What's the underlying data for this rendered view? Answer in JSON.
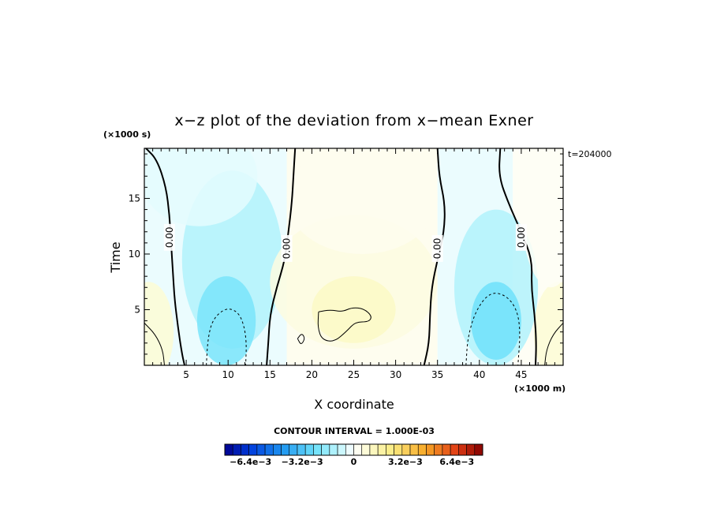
{
  "chart_data": {
    "type": "heatmap",
    "title": "x−z plot of the deviation from x−mean Exner",
    "xlabel": "X coordinate",
    "ylabel": "Time",
    "x_unit": "(×1000 m)",
    "y_unit": "(×1000 s)",
    "annotation": "t=204000",
    "xlim": [
      0,
      50
    ],
    "ylim": [
      0,
      19.5
    ],
    "x_ticks": [
      5,
      10,
      15,
      20,
      25,
      30,
      35,
      40,
      45
    ],
    "y_ticks": [
      5,
      10,
      15
    ],
    "contour_interval_text": "CONTOUR INTERVAL = 1.000E-03",
    "contour_interval": 0.001,
    "colorbar": {
      "range": [
        -0.008,
        0.008
      ],
      "ticks": [
        {
          "value": -0.0064,
          "label": "−6.4e−3"
        },
        {
          "value": -0.0032,
          "label": "−3.2e−3"
        },
        {
          "value": 0,
          "label": "0"
        },
        {
          "value": 0.0032,
          "label": "3.2e−3"
        },
        {
          "value": 0.0064,
          "label": "6.4e−3"
        }
      ]
    },
    "contour_labels": [
      {
        "text": "0.00",
        "x": 3,
        "y": 11.5
      },
      {
        "text": "0.00",
        "x": 17,
        "y": 10.5
      },
      {
        "text": "0.00",
        "x": 35,
        "y": 10.5
      },
      {
        "text": "0.00",
        "x": 45,
        "y": 11.5
      }
    ],
    "zero_contours": [
      [
        [
          0.2,
          19.5
        ],
        [
          1.5,
          18.5
        ],
        [
          2.6,
          16.0
        ],
        [
          3.0,
          13.5
        ],
        [
          3.2,
          11.0
        ],
        [
          3.4,
          8.5
        ],
        [
          3.6,
          6.0
        ],
        [
          4.0,
          3.5
        ],
        [
          4.5,
          1.0
        ],
        [
          4.8,
          0
        ]
      ],
      [
        [
          18.0,
          19.5
        ],
        [
          17.8,
          17.0
        ],
        [
          17.6,
          14.5
        ],
        [
          17.2,
          12.0
        ],
        [
          16.8,
          9.5
        ],
        [
          15.8,
          7.0
        ],
        [
          15.0,
          4.5
        ],
        [
          14.8,
          2.0
        ],
        [
          14.6,
          0
        ]
      ],
      [
        [
          35.0,
          19.5
        ],
        [
          35.2,
          17.0
        ],
        [
          35.9,
          14.5
        ],
        [
          35.8,
          12.0
        ],
        [
          35.0,
          9.5
        ],
        [
          34.3,
          7.0
        ],
        [
          34.1,
          4.5
        ],
        [
          34.0,
          2.0
        ],
        [
          33.4,
          0
        ]
      ],
      [
        [
          42.5,
          19.5
        ],
        [
          42.3,
          17.0
        ],
        [
          43.5,
          14.5
        ],
        [
          45.0,
          12.0
        ],
        [
          46.3,
          9.5
        ],
        [
          46.2,
          7.0
        ],
        [
          46.6,
          4.5
        ],
        [
          46.8,
          2.0
        ],
        [
          46.7,
          0
        ]
      ]
    ],
    "negative_contours": [
      [
        [
          7.4,
          0
        ],
        [
          7.6,
          2.5
        ],
        [
          8.2,
          4.2
        ],
        [
          9.8,
          5.2
        ],
        [
          11.2,
          4.8
        ],
        [
          11.9,
          3.6
        ],
        [
          12.2,
          2.0
        ],
        [
          12.1,
          0
        ]
      ],
      [
        [
          38.4,
          0
        ],
        [
          38.6,
          2.5
        ],
        [
          39.6,
          5.0
        ],
        [
          41.3,
          6.6
        ],
        [
          43.2,
          6.3
        ],
        [
          44.5,
          5.0
        ],
        [
          44.9,
          3.0
        ],
        [
          44.6,
          0
        ]
      ]
    ],
    "positive_contours": [
      [
        [
          20.8,
          4.8
        ],
        [
          22.2,
          5.0
        ],
        [
          23.6,
          4.8
        ],
        [
          24.8,
          5.2
        ],
        [
          26.2,
          5.1
        ],
        [
          27.2,
          4.4
        ],
        [
          26.8,
          3.9
        ],
        [
          25.2,
          3.9
        ],
        [
          24.2,
          3.1
        ],
        [
          22.7,
          2.1
        ],
        [
          21.2,
          2.3
        ],
        [
          20.7,
          3.4
        ],
        [
          20.8,
          4.8
        ]
      ],
      [
        [
          18.3,
          2.4
        ],
        [
          18.8,
          2.9
        ],
        [
          19.2,
          2.4
        ],
        [
          18.7,
          1.8
        ],
        [
          18.3,
          2.4
        ]
      ],
      [
        [
          0,
          3.8
        ],
        [
          1.3,
          2.8
        ],
        [
          2.2,
          1.4
        ],
        [
          2.4,
          0
        ]
      ],
      [
        [
          50,
          3.8
        ],
        [
          48.8,
          2.8
        ],
        [
          48.0,
          1.4
        ],
        [
          47.8,
          0
        ]
      ]
    ],
    "field_blobs": [
      {
        "x": 10.5,
        "y": 9.5,
        "rx": 6.0,
        "ry": 8.0,
        "value": -0.0012
      },
      {
        "x": 9.8,
        "y": 4.0,
        "rx": 3.5,
        "ry": 4.0,
        "value": -0.0022
      },
      {
        "x": 6.5,
        "y": 17.0,
        "rx": 7.0,
        "ry": 4.5,
        "value": -0.0004
      },
      {
        "x": 42.0,
        "y": 7.0,
        "rx": 5.0,
        "ry": 7.0,
        "value": -0.0012
      },
      {
        "x": 42.0,
        "y": 4.0,
        "rx": 3.0,
        "ry": 3.5,
        "value": -0.0024
      },
      {
        "x": 25.0,
        "y": 7.5,
        "rx": 10.0,
        "ry": 6.0,
        "value": 0.0006
      },
      {
        "x": 25.0,
        "y": 5.0,
        "rx": 5.0,
        "ry": 3.0,
        "value": 0.0011
      },
      {
        "x": 26.0,
        "y": 15.0,
        "rx": 9.0,
        "ry": 5.0,
        "value": 0.0003
      },
      {
        "x": 0.5,
        "y": 3.0,
        "rx": 3.0,
        "ry": 4.5,
        "value": 0.0008
      },
      {
        "x": 49.5,
        "y": 3.0,
        "rx": 3.0,
        "ry": 4.5,
        "value": 0.0008
      },
      {
        "x": 48.5,
        "y": 14.0,
        "rx": 3.5,
        "ry": 7.0,
        "value": 0.0002
      }
    ]
  }
}
